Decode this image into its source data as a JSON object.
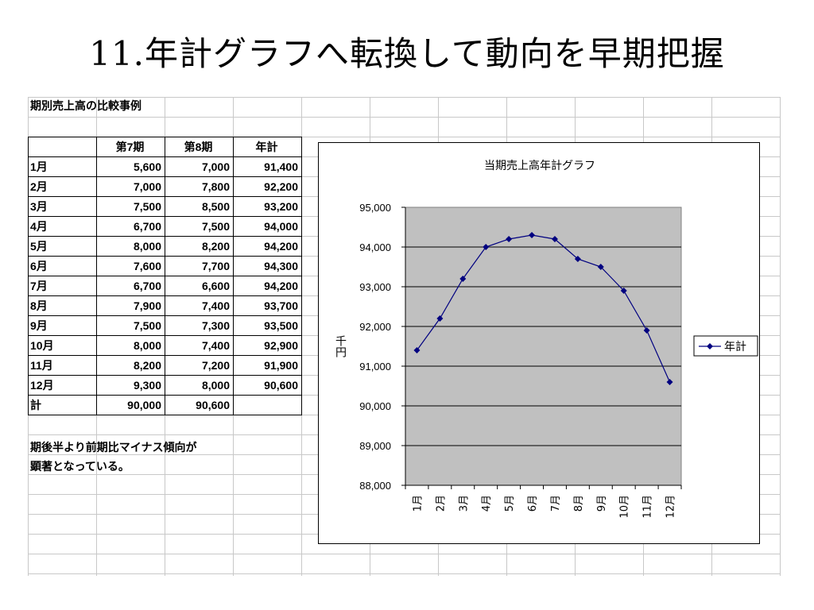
{
  "slide": {
    "title": "11.年計グラフへ転換して動向を早期把握"
  },
  "table": {
    "title": "期別売上高の比較事例",
    "headers": [
      "",
      "第7期",
      "第8期",
      "年計"
    ],
    "rows": [
      [
        "1月",
        "5,600",
        "7,000",
        "91,400"
      ],
      [
        "2月",
        "7,000",
        "7,800",
        "92,200"
      ],
      [
        "3月",
        "7,500",
        "8,500",
        "93,200"
      ],
      [
        "4月",
        "6,700",
        "7,500",
        "94,000"
      ],
      [
        "5月",
        "8,000",
        "8,200",
        "94,200"
      ],
      [
        "6月",
        "7,600",
        "7,700",
        "94,300"
      ],
      [
        "7月",
        "6,700",
        "6,600",
        "94,200"
      ],
      [
        "8月",
        "7,900",
        "7,400",
        "93,700"
      ],
      [
        "9月",
        "7,500",
        "7,300",
        "93,500"
      ],
      [
        "10月",
        "8,000",
        "7,400",
        "92,900"
      ],
      [
        "11月",
        "8,200",
        "7,200",
        "91,900"
      ],
      [
        "12月",
        "9,300",
        "8,000",
        "90,600"
      ]
    ],
    "total_row": [
      "計",
      "90,000",
      "90,600",
      ""
    ]
  },
  "note": {
    "line1": "期後半より前期比マイナス傾向が",
    "line2": "顕著となっている。"
  },
  "chart_data": {
    "type": "line",
    "title": "当期売上高年計グラフ",
    "ylabel": "千円",
    "xlabel": "",
    "categories": [
      "1月",
      "2月",
      "3月",
      "4月",
      "5月",
      "6月",
      "7月",
      "8月",
      "9月",
      "10月",
      "11月",
      "12月"
    ],
    "series": [
      {
        "name": "年計",
        "values": [
          91400,
          92200,
          93200,
          94000,
          94200,
          94300,
          94200,
          93700,
          93500,
          92900,
          91900,
          90600
        ]
      }
    ],
    "ylim": [
      88000,
      95000
    ],
    "yticks": [
      "88,000",
      "89,000",
      "90,000",
      "91,000",
      "92,000",
      "93,000",
      "94,000",
      "95,000"
    ],
    "grid": true,
    "legend": "right",
    "colors": {
      "line": "#000080",
      "plot_bg": "#c0c0c0",
      "gridline": "#000000"
    }
  }
}
